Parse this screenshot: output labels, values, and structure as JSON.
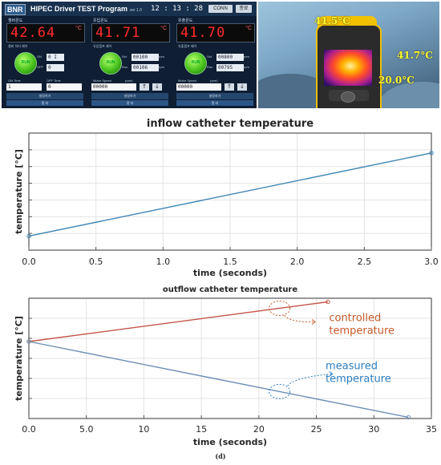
{
  "program": {
    "logo": "BNR",
    "title": "HIPEC Driver TEST Program",
    "version": "ver 1.0",
    "clock": "12 : 13 : 28",
    "btn_connect": "CONN",
    "btn_close": "종료",
    "panels": [
      {
        "label": "챔버온도",
        "display": "42.64",
        "unit": "°C",
        "sublabel": "챔버 히터 제어",
        "lamp": "RUN",
        "row1_label": "ON",
        "row1_value": "0 I",
        "row2_label": "OFF",
        "row2_value": "0",
        "ctl1": "ON Time",
        "ctl1_value": "1",
        "ctl2": "OFF Time",
        "ctl2_value": "0",
        "bar1": "설정하기",
        "bar2": "정 지"
      },
      {
        "label": "유입온도",
        "display": "41.71",
        "unit": "°C",
        "sublabel": "유입펌프 제어",
        "lamp": "RUN",
        "row1_label": "Set",
        "row1_value": "00100",
        "row1_unit": "rpm",
        "row2_label": "Run",
        "row2_value": "00106",
        "row2_unit": "rpm",
        "ctl1": "Motor Speed",
        "ctl1_value": "00000",
        "ctl1_unit": "(rpm)",
        "bar1": "설정하기",
        "bar2": "정 지"
      },
      {
        "label": "유출온도",
        "display": "41.70",
        "unit": "°C",
        "sublabel": "유출펌프 제어",
        "lamp": "RUN",
        "row1_label": "Set",
        "row1_value": "00800",
        "row1_unit": "rpm",
        "row2_label": "Run",
        "row2_value": "00795",
        "row2_unit": "rpm",
        "ctl1": "Motor Speed",
        "ctl1_value": "00000",
        "ctl1_unit": "(rpm)",
        "bar1": "설정하기",
        "bar2": "정 지"
      }
    ]
  },
  "thermal_photo": {
    "labels": [
      "41.5°C",
      "41.7°C",
      "20.0°C"
    ]
  },
  "chart_data": [
    {
      "type": "line",
      "title": "inflow catheter temperature",
      "xlabel": "time (seconds)",
      "ylabel": "temperature [°C]",
      "xlim": [
        0,
        3
      ],
      "ylim": [
        0,
        10
      ],
      "xticks": [
        "0.0",
        "0.5",
        "1.0",
        "1.5",
        "2.0",
        "2.5",
        "3.0"
      ],
      "yticks_labeled": false,
      "grid": true,
      "series": [
        {
          "color": "#3f86b4",
          "x": [
            0,
            3.0
          ],
          "y": [
            1.2,
            8.3
          ]
        }
      ]
    },
    {
      "type": "line",
      "title": "outflow catheter temperature",
      "xlabel": "time (seconds)",
      "ylabel": "temperature [°C]",
      "xlim": [
        0,
        35
      ],
      "ylim": [
        0,
        10
      ],
      "xticks": [
        "0.0",
        "5.0",
        "10",
        "15",
        "20",
        "25",
        "30",
        "35"
      ],
      "yticks_labeled": false,
      "grid": true,
      "series": [
        {
          "name": "controlled temperature",
          "color": "#c4554a",
          "x": [
            0,
            26
          ],
          "y": [
            6.4,
            9.7
          ]
        },
        {
          "name": "measured temperature",
          "color": "#6e8fb5",
          "x": [
            0,
            33
          ],
          "y": [
            6.4,
            0.1
          ]
        }
      ],
      "annotations": [
        {
          "text": [
            "controlled",
            "temperature"
          ],
          "color": "#c65a28"
        },
        {
          "text": [
            "measured",
            "temperature"
          ],
          "color": "#2d7fc0"
        }
      ]
    }
  ],
  "caption": "(d)"
}
